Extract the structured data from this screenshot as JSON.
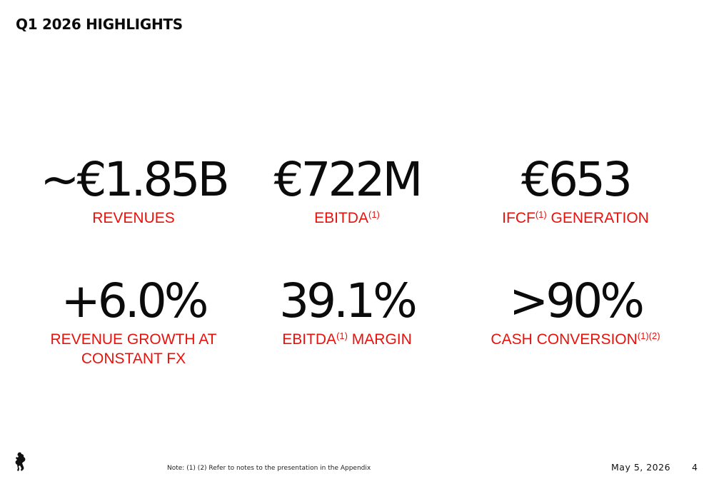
{
  "slide": {
    "title": "Q1 2026 HIGHLIGHTS"
  },
  "metrics": [
    {
      "value": "~€1.85B",
      "label": "REVENUES",
      "label_sup": "",
      "label_after": ""
    },
    {
      "value": "€722M",
      "label": "EBITDA",
      "label_sup": "(1)",
      "label_after": ""
    },
    {
      "value": "€653",
      "label": "IFCF",
      "label_sup": "(1)",
      "label_after": " GENERATION"
    },
    {
      "value": "+6.0%",
      "label": "REVENUE GROWTH AT CONSTANT FX",
      "label_sup": "",
      "label_after": ""
    },
    {
      "value": "39.1%",
      "label": "EBITDA",
      "label_sup": "(1)",
      "label_after": " MARGIN"
    },
    {
      "value": ">90%",
      "label": "CASH CONVERSION",
      "label_sup": "(1)(2)",
      "label_after": ""
    }
  ],
  "footer": {
    "note": "Note: (1) (2) Refer to notes to the presentation in the Appendix",
    "date": "May 5, 2026",
    "page_number": "4",
    "logo_icon": "prancing-horse-logo-icon"
  },
  "colors": {
    "accent_red": "#e8120c",
    "text_dark": "#0b0b0b",
    "background": "#ffffff"
  }
}
